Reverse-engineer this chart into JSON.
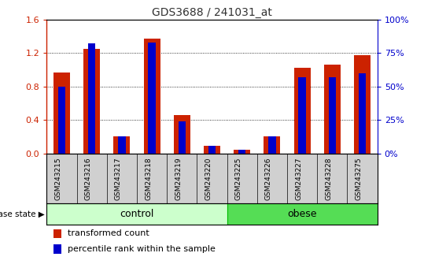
{
  "title": "GDS3688 / 241031_at",
  "samples": [
    "GSM243215",
    "GSM243216",
    "GSM243217",
    "GSM243218",
    "GSM243219",
    "GSM243220",
    "GSM243225",
    "GSM243226",
    "GSM243227",
    "GSM243228",
    "GSM243275"
  ],
  "transformed_count": [
    0.97,
    1.25,
    0.2,
    1.37,
    0.46,
    0.09,
    0.04,
    0.2,
    1.02,
    1.06,
    1.17
  ],
  "percentile_rank_pct": [
    50,
    82,
    13,
    83,
    24,
    6,
    3,
    13,
    57,
    57,
    60
  ],
  "control_count": 6,
  "obese_count": 5,
  "groups": [
    {
      "label": "control",
      "color_fill": "#CCFFCC",
      "color_edge": "#00CC00"
    },
    {
      "label": "obese",
      "color_fill": "#55DD55",
      "color_edge": "#00BB00"
    }
  ],
  "ylim_left": [
    0,
    1.6
  ],
  "ylim_right": [
    0,
    100
  ],
  "yticks_left": [
    0,
    0.4,
    0.8,
    1.2,
    1.6
  ],
  "yticks_right": [
    0,
    25,
    50,
    75,
    100
  ],
  "bar_color_red": "#CC2200",
  "bar_color_blue": "#0000CC",
  "title_color": "#333333",
  "left_axis_color": "#CC2200",
  "right_axis_color": "#0000CC",
  "legend_labels": [
    "transformed count",
    "percentile rank within the sample"
  ],
  "disease_state_label": "disease state"
}
